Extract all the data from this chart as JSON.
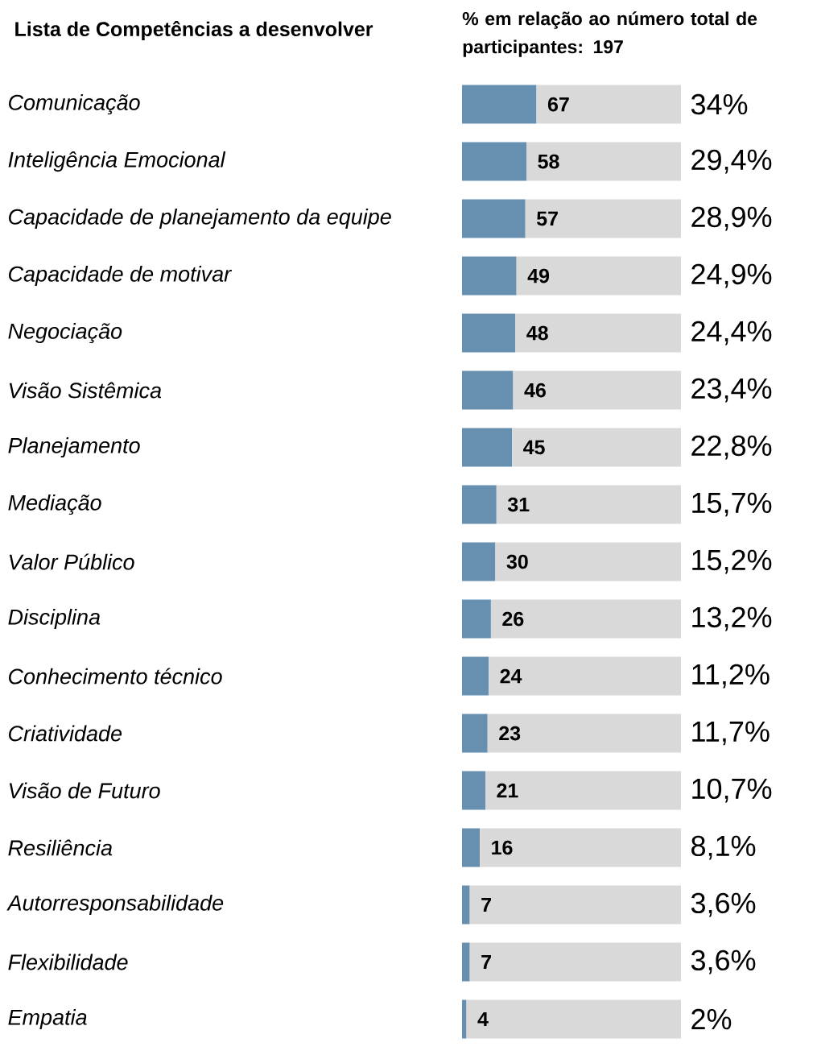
{
  "chart_data": {
    "type": "bar",
    "orientation": "horizontal",
    "stacked": true,
    "title": "Lista de Competências a desenvolver",
    "subtitle": "% em relação ao número total de participantes: 197",
    "categories": [
      "Comunicação",
      "Inteligência Emocional",
      "Capacidade de planejamento da equipe",
      "Capacidade de motivar",
      "Negociação",
      "Visão Sistêmica",
      "Planejamento",
      "Mediação",
      "Valor Público",
      "Disciplina",
      "Conhecimento técnico",
      "Criatividade",
      "Visão de Futuro",
      "Resiliência",
      "Autorresponsabilidade",
      "Flexibilidade",
      "Empatia"
    ],
    "series": [
      {
        "color": "#678fb0",
        "values": [
          67,
          58,
          57,
          49,
          48,
          46,
          45,
          31,
          30,
          26,
          24,
          23,
          21,
          16,
          7,
          7,
          4
        ],
        "value_labels": [
          "67",
          "58",
          "57",
          "49",
          "48",
          "46",
          "45",
          "31",
          "30",
          "26",
          "24",
          "23",
          "21",
          "16",
          "7",
          "7",
          "4"
        ]
      },
      {
        "color": "#d9d9d9",
        "values": [
          130,
          139,
          140,
          148,
          149,
          151,
          152,
          166,
          167,
          171,
          173,
          174,
          176,
          181,
          190,
          190,
          193
        ]
      }
    ],
    "annotations": [
      "34%",
      "29,4%",
      "28,9%",
      "24,9%",
      "24,4%",
      "23,4%",
      "22,8%",
      "15,7%",
      "15,2%",
      "13,2%",
      "11,2%",
      "11,7%",
      "10,7%",
      "8,1%",
      "3,6%",
      "3,6%",
      "2%"
    ],
    "xlim": [
      0,
      197
    ],
    "tick_labels": "y"
  }
}
